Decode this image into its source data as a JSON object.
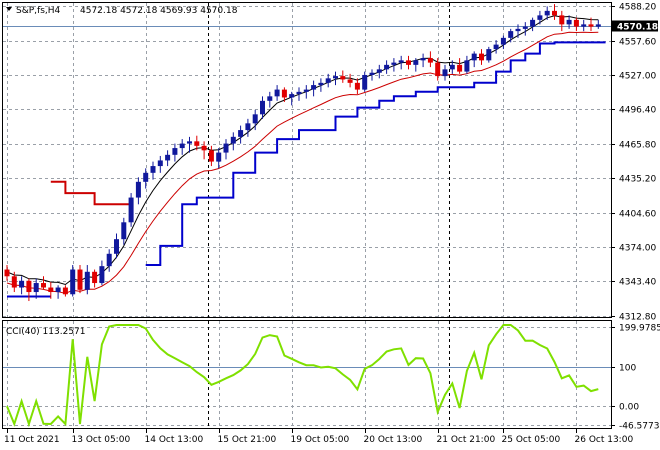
{
  "header": {
    "symbol": "S&P,fs,H4",
    "ohlc": "4572.18 4572.18 4569.93 4570.18",
    "current_price": "4570.18"
  },
  "indicator": {
    "label": "CCI(40) 113.2571",
    "level_label": "100"
  },
  "colors": {
    "bull": "#10189c",
    "bear": "#e00000",
    "upper_line": "#000000",
    "lower_line": "#cc0000",
    "stop_down": "#0000cc",
    "stop_up": "#cc0000",
    "cci": "#7fe000",
    "grid": "#9aa0a8",
    "price_line": "#6a8cb8"
  },
  "chart_data": [
    {
      "type": "candlestick",
      "title": "S&P,fs,H4",
      "x_ticks": [
        "11 Oct 2021",
        "13 Oct 05:00",
        "14 Oct 13:00",
        "15 Oct 21:00",
        "19 Oct 05:00",
        "20 Oct 13:00",
        "21 Oct 21:00",
        "25 Oct 05:00",
        "26 Oct 13:00"
      ],
      "x_tick_index": [
        0,
        9,
        19,
        29,
        39,
        49,
        59,
        68,
        78
      ],
      "y_ticks": [
        4588.2,
        4557.6,
        4527.0,
        4496.4,
        4465.8,
        4435.2,
        4404.6,
        4374.0,
        4343.4,
        4312.8
      ],
      "y_tick_labels": [
        "4588.20",
        "4557.60",
        "4527.00",
        "4496.40",
        "4465.80",
        "4435.20",
        "4404.60",
        "4374.00",
        "4343.40",
        "4312.80"
      ],
      "ylim": [
        4311.8,
        4591.0
      ],
      "current_price": 4570.18,
      "candles": [
        [
          4354,
          4358,
          4344,
          4348
        ],
        [
          4348,
          4352,
          4334,
          4338
        ],
        [
          4338,
          4348,
          4332,
          4344
        ],
        [
          4344,
          4346,
          4326,
          4334
        ],
        [
          4334,
          4346,
          4328,
          4342
        ],
        [
          4342,
          4348,
          4336,
          4338
        ],
        [
          4338,
          4343,
          4328,
          4334
        ],
        [
          4334,
          4340,
          4328,
          4338
        ],
        [
          4338,
          4340,
          4330,
          4332
        ],
        [
          4332,
          4358,
          4330,
          4354
        ],
        [
          4354,
          4358,
          4333,
          4336
        ],
        [
          4336,
          4358,
          4332,
          4352
        ],
        [
          4352,
          4354,
          4338,
          4342
        ],
        [
          4342,
          4362,
          4340,
          4357
        ],
        [
          4357,
          4372,
          4352,
          4368
        ],
        [
          4368,
          4386,
          4364,
          4381
        ],
        [
          4381,
          4400,
          4376,
          4396
        ],
        [
          4396,
          4422,
          4392,
          4418
        ],
        [
          4418,
          4436,
          4412,
          4432
        ],
        [
          4432,
          4444,
          4426,
          4440
        ],
        [
          4440,
          4450,
          4434,
          4446
        ],
        [
          4446,
          4455,
          4440,
          4451
        ],
        [
          4451,
          4460,
          4446,
          4456
        ],
        [
          4456,
          4466,
          4450,
          4462
        ],
        [
          4462,
          4470,
          4456,
          4466
        ],
        [
          4466,
          4472,
          4458,
          4468
        ],
        [
          4468,
          4473,
          4460,
          4464
        ],
        [
          4464,
          4468,
          4452,
          4460
        ],
        [
          4460,
          4464,
          4446,
          4450
        ],
        [
          4450,
          4462,
          4444,
          4458
        ],
        [
          4458,
          4470,
          4452,
          4466
        ],
        [
          4466,
          4476,
          4460,
          4472
        ],
        [
          4472,
          4482,
          4466,
          4478
        ],
        [
          4478,
          4488,
          4472,
          4484
        ],
        [
          4484,
          4496,
          4478,
          4492
        ],
        [
          4492,
          4508,
          4488,
          4504
        ],
        [
          4504,
          4512,
          4498,
          4508
        ],
        [
          4508,
          4518,
          4504,
          4514
        ],
        [
          4514,
          4516,
          4503,
          4507
        ],
        [
          4507,
          4512,
          4500,
          4510
        ],
        [
          4510,
          4516,
          4504,
          4512
        ],
        [
          4512,
          4518,
          4506,
          4514
        ],
        [
          4514,
          4522,
          4508,
          4518
        ],
        [
          4518,
          4524,
          4512,
          4520
        ],
        [
          4520,
          4528,
          4516,
          4524
        ],
        [
          4524,
          4530,
          4518,
          4526
        ],
        [
          4526,
          4531,
          4520,
          4523
        ],
        [
          4523,
          4528,
          4516,
          4520
        ],
        [
          4520,
          4524,
          4510,
          4514
        ],
        [
          4514,
          4530,
          4512,
          4527
        ],
        [
          4527,
          4532,
          4522,
          4529
        ],
        [
          4529,
          4536,
          4524,
          4532
        ],
        [
          4532,
          4540,
          4528,
          4536
        ],
        [
          4536,
          4542,
          4530,
          4538
        ],
        [
          4538,
          4544,
          4532,
          4540
        ],
        [
          4540,
          4544,
          4532,
          4536
        ],
        [
          4536,
          4542,
          4530,
          4540
        ],
        [
          4540,
          4546,
          4534,
          4542
        ],
        [
          4542,
          4548,
          4534,
          4538
        ],
        [
          4538,
          4542,
          4522,
          4526
        ],
        [
          4526,
          4536,
          4522,
          4532
        ],
        [
          4532,
          4540,
          4528,
          4536
        ],
        [
          4536,
          4542,
          4528,
          4530
        ],
        [
          4530,
          4544,
          4528,
          4540
        ],
        [
          4540,
          4548,
          4534,
          4546
        ],
        [
          4546,
          4550,
          4536,
          4540
        ],
        [
          4540,
          4552,
          4538,
          4550
        ],
        [
          4550,
          4558,
          4546,
          4554
        ],
        [
          4554,
          4562,
          4550,
          4560
        ],
        [
          4560,
          4568,
          4556,
          4566
        ],
        [
          4566,
          4572,
          4560,
          4568
        ],
        [
          4568,
          4574,
          4562,
          4570
        ],
        [
          4570,
          4578,
          4566,
          4576
        ],
        [
          4576,
          4584,
          4572,
          4580
        ],
        [
          4580,
          4588,
          4576,
          4584
        ],
        [
          4584,
          4590,
          4576,
          4580
        ],
        [
          4580,
          4584,
          4566,
          4572
        ],
        [
          4572,
          4580,
          4568,
          4576
        ],
        [
          4576,
          4578,
          4566,
          4570
        ],
        [
          4570,
          4576,
          4566,
          4572
        ],
        [
          4572,
          4578,
          4566,
          4570
        ],
        [
          4570,
          4576,
          4568,
          4572
        ]
      ]
    },
    {
      "type": "line",
      "title": "CCI(40) 113.2571",
      "y_ticks": [
        199.9785,
        100,
        0.0,
        -46.5773
      ],
      "y_tick_labels": [
        "199.9785",
        "100",
        "0.00",
        "-46.5773"
      ],
      "ylim": [
        -55,
        215
      ]
    }
  ]
}
